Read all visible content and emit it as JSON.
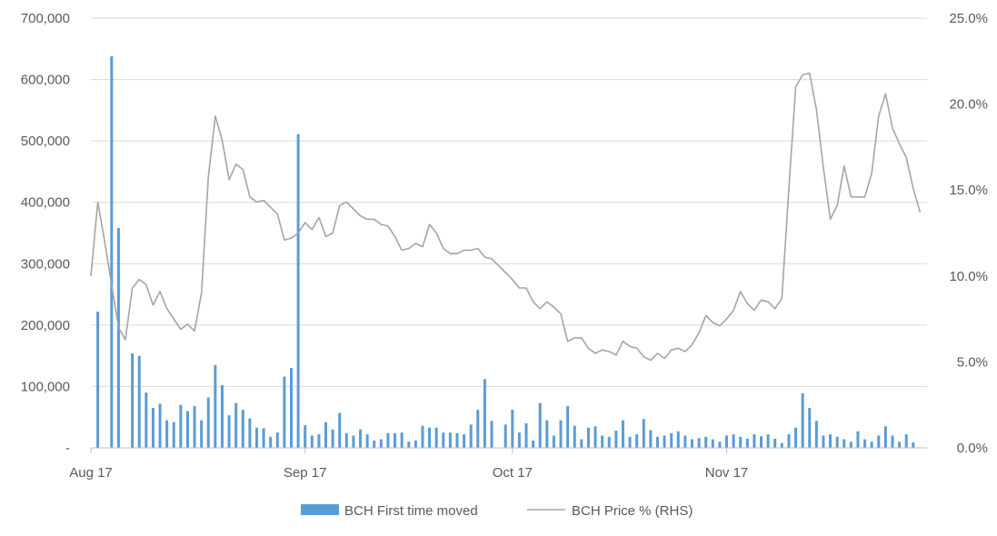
{
  "chart_data": {
    "type": "bar+line",
    "title": "",
    "colors": {
      "bars": "#5b9bd5",
      "line": "#a5a5a5",
      "grid": "#d9d9d9",
      "text": "#595959"
    },
    "left_axis": {
      "ylim": [
        0,
        700000
      ],
      "tick_values": [
        0,
        100000,
        200000,
        300000,
        400000,
        500000,
        600000,
        700000
      ],
      "tick_labels": [
        "-",
        "100,000",
        "200,000",
        "300,000",
        "400,000",
        "500,000",
        "600,000",
        "700,000"
      ]
    },
    "right_axis": {
      "ylim": [
        0,
        25
      ],
      "tick_values": [
        0,
        5,
        10,
        15,
        20,
        25
      ],
      "tick_labels": [
        "0.0%",
        "5.0%",
        "10.0%",
        "15.0%",
        "20.0%",
        "25.0%"
      ]
    },
    "x_axis": {
      "start": "2017-08-01",
      "end": "2017-11-30",
      "tick_dates": [
        "2017-08-01",
        "2017-09-01",
        "2017-10-01",
        "2017-11-01"
      ],
      "tick_labels": [
        "Aug 17",
        "Sep 17",
        "Oct 17",
        "Nov 17"
      ]
    },
    "legend": {
      "position": "bottom",
      "items": [
        {
          "label": "BCH First time moved",
          "kind": "bar"
        },
        {
          "label": "BCH Price % (RHS)",
          "kind": "line"
        }
      ]
    },
    "series": [
      {
        "name": "BCH First time moved",
        "axis": "left",
        "kind": "bar",
        "points": [
          [
            "2017-08-02",
            222000
          ],
          [
            "2017-08-04",
            638000
          ],
          [
            "2017-08-05",
            358000
          ],
          [
            "2017-08-07",
            154000
          ],
          [
            "2017-08-08",
            150000
          ],
          [
            "2017-08-09",
            90000
          ],
          [
            "2017-08-10",
            65000
          ],
          [
            "2017-08-11",
            72000
          ],
          [
            "2017-08-12",
            45000
          ],
          [
            "2017-08-13",
            42000
          ],
          [
            "2017-08-14",
            70000
          ],
          [
            "2017-08-15",
            60000
          ],
          [
            "2017-08-16",
            68000
          ],
          [
            "2017-08-17",
            45000
          ],
          [
            "2017-08-18",
            82000
          ],
          [
            "2017-08-19",
            135000
          ],
          [
            "2017-08-20",
            102000
          ],
          [
            "2017-08-21",
            53000
          ],
          [
            "2017-08-22",
            73000
          ],
          [
            "2017-08-23",
            62000
          ],
          [
            "2017-08-24",
            48000
          ],
          [
            "2017-08-25",
            33000
          ],
          [
            "2017-08-26",
            32000
          ],
          [
            "2017-08-27",
            18000
          ],
          [
            "2017-08-28",
            25000
          ],
          [
            "2017-08-29",
            116000
          ],
          [
            "2017-08-30",
            130000
          ],
          [
            "2017-08-31",
            511000
          ],
          [
            "2017-09-01",
            37000
          ],
          [
            "2017-09-02",
            20000
          ],
          [
            "2017-09-03",
            22000
          ],
          [
            "2017-09-04",
            42000
          ],
          [
            "2017-09-05",
            30000
          ],
          [
            "2017-09-06",
            57000
          ],
          [
            "2017-09-07",
            24000
          ],
          [
            "2017-09-08",
            20000
          ],
          [
            "2017-09-09",
            30000
          ],
          [
            "2017-09-10",
            22000
          ],
          [
            "2017-09-11",
            12000
          ],
          [
            "2017-09-12",
            14000
          ],
          [
            "2017-09-13",
            24000
          ],
          [
            "2017-09-14",
            24000
          ],
          [
            "2017-09-15",
            25000
          ],
          [
            "2017-09-16",
            10000
          ],
          [
            "2017-09-17",
            12000
          ],
          [
            "2017-09-18",
            36000
          ],
          [
            "2017-09-19",
            33000
          ],
          [
            "2017-09-20",
            33000
          ],
          [
            "2017-09-21",
            25000
          ],
          [
            "2017-09-22",
            25000
          ],
          [
            "2017-09-23",
            24000
          ],
          [
            "2017-09-24",
            22000
          ],
          [
            "2017-09-25",
            38000
          ],
          [
            "2017-09-26",
            62000
          ],
          [
            "2017-09-27",
            112000
          ],
          [
            "2017-09-28",
            44000
          ],
          [
            "2017-09-30",
            38000
          ],
          [
            "2017-10-01",
            62000
          ],
          [
            "2017-10-02",
            25000
          ],
          [
            "2017-10-03",
            40000
          ],
          [
            "2017-10-04",
            12000
          ],
          [
            "2017-10-05",
            73000
          ],
          [
            "2017-10-06",
            45000
          ],
          [
            "2017-10-07",
            20000
          ],
          [
            "2017-10-08",
            45000
          ],
          [
            "2017-10-09",
            68000
          ],
          [
            "2017-10-10",
            36000
          ],
          [
            "2017-10-11",
            14000
          ],
          [
            "2017-10-12",
            33000
          ],
          [
            "2017-10-13",
            35000
          ],
          [
            "2017-10-14",
            20000
          ],
          [
            "2017-10-15",
            18000
          ],
          [
            "2017-10-16",
            28000
          ],
          [
            "2017-10-17",
            45000
          ],
          [
            "2017-10-18",
            18000
          ],
          [
            "2017-10-19",
            22000
          ],
          [
            "2017-10-20",
            47000
          ],
          [
            "2017-10-21",
            29000
          ],
          [
            "2017-10-22",
            18000
          ],
          [
            "2017-10-23",
            20000
          ],
          [
            "2017-10-24",
            24000
          ],
          [
            "2017-10-25",
            27000
          ],
          [
            "2017-10-26",
            20000
          ],
          [
            "2017-10-27",
            14000
          ],
          [
            "2017-10-28",
            16000
          ],
          [
            "2017-10-29",
            18000
          ],
          [
            "2017-10-30",
            14000
          ],
          [
            "2017-10-31",
            10000
          ],
          [
            "2017-11-01",
            20000
          ],
          [
            "2017-11-02",
            22000
          ],
          [
            "2017-11-03",
            18000
          ],
          [
            "2017-11-04",
            15000
          ],
          [
            "2017-11-05",
            22000
          ],
          [
            "2017-11-06",
            19000
          ],
          [
            "2017-11-07",
            22000
          ],
          [
            "2017-11-08",
            15000
          ],
          [
            "2017-11-09",
            8000
          ],
          [
            "2017-11-10",
            22000
          ],
          [
            "2017-11-11",
            33000
          ],
          [
            "2017-11-12",
            89000
          ],
          [
            "2017-11-13",
            65000
          ],
          [
            "2017-11-14",
            44000
          ],
          [
            "2017-11-15",
            20000
          ],
          [
            "2017-11-16",
            22000
          ],
          [
            "2017-11-17",
            18000
          ],
          [
            "2017-11-18",
            14000
          ],
          [
            "2017-11-19",
            10000
          ],
          [
            "2017-11-20",
            27000
          ],
          [
            "2017-11-21",
            14000
          ],
          [
            "2017-11-22",
            10000
          ],
          [
            "2017-11-23",
            20000
          ],
          [
            "2017-11-24",
            35000
          ],
          [
            "2017-11-25",
            20000
          ],
          [
            "2017-11-26",
            10000
          ],
          [
            "2017-11-27",
            22000
          ],
          [
            "2017-11-28",
            9000
          ]
        ]
      },
      {
        "name": "BCH Price % (RHS)",
        "axis": "right",
        "kind": "line",
        "points": [
          [
            "2017-08-01",
            10.0
          ],
          [
            "2017-08-02",
            14.3
          ],
          [
            "2017-08-03",
            12.0
          ],
          [
            "2017-08-04",
            9.5
          ],
          [
            "2017-08-05",
            7.0
          ],
          [
            "2017-08-06",
            6.3
          ],
          [
            "2017-08-07",
            9.3
          ],
          [
            "2017-08-08",
            9.8
          ],
          [
            "2017-08-09",
            9.5
          ],
          [
            "2017-08-10",
            8.3
          ],
          [
            "2017-08-11",
            9.1
          ],
          [
            "2017-08-12",
            8.1
          ],
          [
            "2017-08-13",
            7.5
          ],
          [
            "2017-08-14",
            6.9
          ],
          [
            "2017-08-15",
            7.2
          ],
          [
            "2017-08-16",
            6.8
          ],
          [
            "2017-08-17",
            9.0
          ],
          [
            "2017-08-18",
            15.8
          ],
          [
            "2017-08-19",
            19.3
          ],
          [
            "2017-08-20",
            17.9
          ],
          [
            "2017-08-21",
            15.6
          ],
          [
            "2017-08-22",
            16.5
          ],
          [
            "2017-08-23",
            16.2
          ],
          [
            "2017-08-24",
            14.6
          ],
          [
            "2017-08-25",
            14.3
          ],
          [
            "2017-08-26",
            14.4
          ],
          [
            "2017-08-27",
            14.0
          ],
          [
            "2017-08-28",
            13.6
          ],
          [
            "2017-08-29",
            12.1
          ],
          [
            "2017-08-30",
            12.2
          ],
          [
            "2017-08-31",
            12.5
          ],
          [
            "2017-09-01",
            13.1
          ],
          [
            "2017-09-02",
            12.7
          ],
          [
            "2017-09-03",
            13.4
          ],
          [
            "2017-09-04",
            12.3
          ],
          [
            "2017-09-05",
            12.5
          ],
          [
            "2017-09-06",
            14.1
          ],
          [
            "2017-09-07",
            14.3
          ],
          [
            "2017-09-08",
            13.9
          ],
          [
            "2017-09-09",
            13.5
          ],
          [
            "2017-09-10",
            13.3
          ],
          [
            "2017-09-11",
            13.3
          ],
          [
            "2017-09-12",
            13.0
          ],
          [
            "2017-09-13",
            12.9
          ],
          [
            "2017-09-14",
            12.3
          ],
          [
            "2017-09-15",
            11.5
          ],
          [
            "2017-09-16",
            11.6
          ],
          [
            "2017-09-17",
            11.9
          ],
          [
            "2017-09-18",
            11.7
          ],
          [
            "2017-09-19",
            13.0
          ],
          [
            "2017-09-20",
            12.5
          ],
          [
            "2017-09-21",
            11.6
          ],
          [
            "2017-09-22",
            11.3
          ],
          [
            "2017-09-23",
            11.3
          ],
          [
            "2017-09-24",
            11.5
          ],
          [
            "2017-09-25",
            11.5
          ],
          [
            "2017-09-26",
            11.6
          ],
          [
            "2017-09-27",
            11.1
          ],
          [
            "2017-09-28",
            11.0
          ],
          [
            "2017-09-29",
            10.6
          ],
          [
            "2017-09-30",
            10.2
          ],
          [
            "2017-10-01",
            9.8
          ],
          [
            "2017-10-02",
            9.3
          ],
          [
            "2017-10-03",
            9.3
          ],
          [
            "2017-10-04",
            8.5
          ],
          [
            "2017-10-05",
            8.1
          ],
          [
            "2017-10-06",
            8.5
          ],
          [
            "2017-10-07",
            8.2
          ],
          [
            "2017-10-08",
            7.8
          ],
          [
            "2017-10-09",
            6.2
          ],
          [
            "2017-10-10",
            6.4
          ],
          [
            "2017-10-11",
            6.4
          ],
          [
            "2017-10-12",
            5.8
          ],
          [
            "2017-10-13",
            5.5
          ],
          [
            "2017-10-14",
            5.7
          ],
          [
            "2017-10-15",
            5.6
          ],
          [
            "2017-10-16",
            5.4
          ],
          [
            "2017-10-17",
            6.2
          ],
          [
            "2017-10-18",
            5.9
          ],
          [
            "2017-10-19",
            5.8
          ],
          [
            "2017-10-20",
            5.3
          ],
          [
            "2017-10-21",
            5.1
          ],
          [
            "2017-10-22",
            5.5
          ],
          [
            "2017-10-23",
            5.2
          ],
          [
            "2017-10-24",
            5.7
          ],
          [
            "2017-10-25",
            5.8
          ],
          [
            "2017-10-26",
            5.6
          ],
          [
            "2017-10-27",
            6.0
          ],
          [
            "2017-10-28",
            6.7
          ],
          [
            "2017-10-29",
            7.7
          ],
          [
            "2017-10-30",
            7.3
          ],
          [
            "2017-10-31",
            7.1
          ],
          [
            "2017-11-01",
            7.5
          ],
          [
            "2017-11-02",
            8.0
          ],
          [
            "2017-11-03",
            9.1
          ],
          [
            "2017-11-04",
            8.4
          ],
          [
            "2017-11-05",
            8.0
          ],
          [
            "2017-11-06",
            8.6
          ],
          [
            "2017-11-07",
            8.5
          ],
          [
            "2017-11-08",
            8.1
          ],
          [
            "2017-11-09",
            8.7
          ],
          [
            "2017-11-10",
            15.0
          ],
          [
            "2017-11-11",
            21.0
          ],
          [
            "2017-11-12",
            21.7
          ],
          [
            "2017-11-13",
            21.8
          ],
          [
            "2017-11-14",
            19.7
          ],
          [
            "2017-11-15",
            16.3
          ],
          [
            "2017-11-16",
            13.3
          ],
          [
            "2017-11-17",
            14.1
          ],
          [
            "2017-11-18",
            16.4
          ],
          [
            "2017-11-19",
            14.6
          ],
          [
            "2017-11-20",
            14.6
          ],
          [
            "2017-11-21",
            14.6
          ],
          [
            "2017-11-22",
            16.0
          ],
          [
            "2017-11-23",
            19.3
          ],
          [
            "2017-11-24",
            20.6
          ],
          [
            "2017-11-25",
            18.6
          ],
          [
            "2017-11-26",
            17.7
          ],
          [
            "2017-11-27",
            16.9
          ],
          [
            "2017-11-28",
            15.1
          ],
          [
            "2017-11-29",
            13.7
          ]
        ]
      }
    ]
  }
}
